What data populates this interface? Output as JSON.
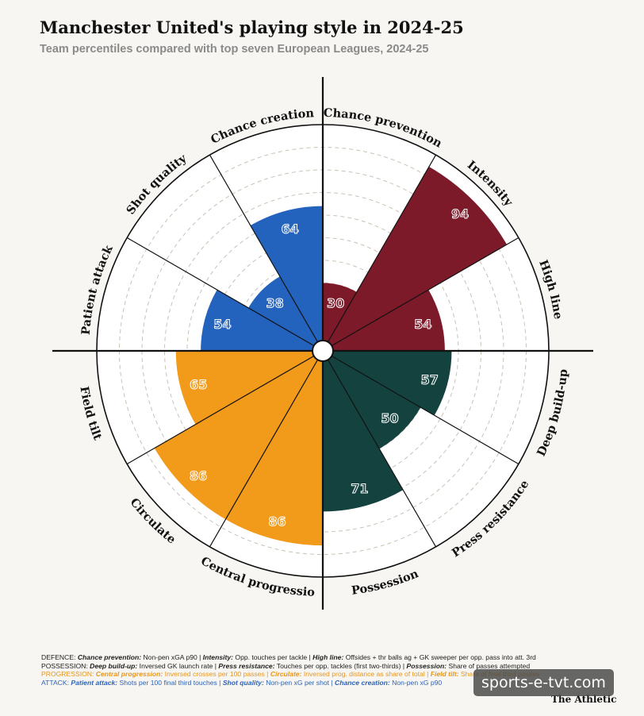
{
  "title": "Manchester United's playing style in 2024-25",
  "subtitle": "Team percentiles compared with top seven European Leagues, 2024-25",
  "chart_data": {
    "type": "polar-bar",
    "rmax": 100,
    "gridlines": [
      10,
      20,
      30,
      40,
      50,
      60,
      70,
      80,
      90
    ],
    "categories": [
      {
        "label": "Chance prevention",
        "value": 30,
        "group": "Defence"
      },
      {
        "label": "Intensity",
        "value": 94,
        "group": "Defence"
      },
      {
        "label": "High line",
        "value": 54,
        "group": "Defence"
      },
      {
        "label": "Deep build-up",
        "value": 57,
        "group": "Possession"
      },
      {
        "label": "Press resistance",
        "value": 50,
        "group": "Possession"
      },
      {
        "label": "Possession",
        "value": 71,
        "group": "Possession"
      },
      {
        "label": "Central progression",
        "value": 86,
        "group": "Progression"
      },
      {
        "label": "Circulate",
        "value": 86,
        "group": "Progression"
      },
      {
        "label": "Field tilt",
        "value": 65,
        "group": "Progression"
      },
      {
        "label": "Patient attack",
        "value": 54,
        "group": "Attack"
      },
      {
        "label": "Shot quality",
        "value": 38,
        "group": "Attack"
      },
      {
        "label": "Chance creation",
        "value": 64,
        "group": "Attack"
      }
    ],
    "group_colors": {
      "Defence": "#7d1a2a",
      "Possession": "#14433f",
      "Progression": "#f29b1b",
      "Attack": "#2463bd"
    }
  },
  "footer": {
    "defence": [
      {
        "t": "DEFENCE: ",
        "b": false
      },
      {
        "t": "Chance prevention:",
        "b": true
      },
      {
        "t": " Non-pen xGA p90 | ",
        "b": false
      },
      {
        "t": "Intensity:",
        "b": true
      },
      {
        "t": " Opp. touches per tackle | ",
        "b": false
      },
      {
        "t": "High line:",
        "b": true
      },
      {
        "t": " Offsides + thr balls ag + GK sweeper per opp. pass into att. 3rd",
        "b": false
      }
    ],
    "possession": [
      {
        "t": "POSSESSION: ",
        "b": false
      },
      {
        "t": "Deep build-up:",
        "b": true
      },
      {
        "t": " Inversed GK launch rate | ",
        "b": false
      },
      {
        "t": "Press resistance:",
        "b": true
      },
      {
        "t": " Touches per opp. tackles (first two-thirds) | ",
        "b": false
      },
      {
        "t": "Possession:",
        "b": true
      },
      {
        "t": " Share of passes attempted",
        "b": false
      }
    ],
    "progression": [
      {
        "t": "PROGRESSION: ",
        "b": false
      },
      {
        "t": "Central progression:",
        "b": true
      },
      {
        "t": " Inversed crosses per 100 passes | ",
        "b": false
      },
      {
        "t": "Circulate:",
        "b": true
      },
      {
        "t": " Inversed prog. distance as share of total | ",
        "b": false
      },
      {
        "t": "Field tilt:",
        "b": true
      },
      {
        "t": " Share of final third passes",
        "b": false
      }
    ],
    "attack": [
      {
        "t": "ATTACK: ",
        "b": false
      },
      {
        "t": "Patient attack:",
        "b": true
      },
      {
        "t": " Shots per 100 final third touches | ",
        "b": false
      },
      {
        "t": "Shot quality:",
        "b": true
      },
      {
        "t": " Non-pen xG per shot | ",
        "b": false
      },
      {
        "t": "Chance creation:",
        "b": true
      },
      {
        "t": " Non-pen xG p90",
        "b": false
      }
    ]
  },
  "brand": "The Athletic",
  "watermark": "sports-e-tvt.com"
}
